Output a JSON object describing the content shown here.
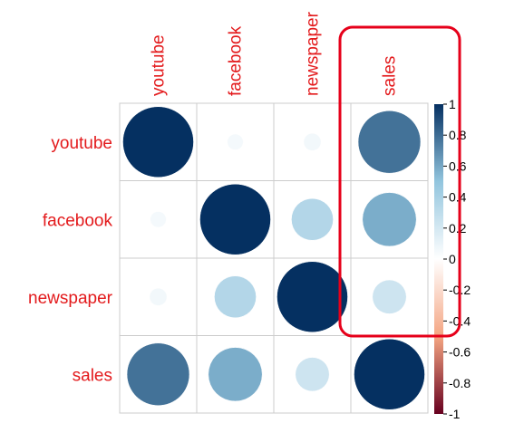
{
  "chart_data": {
    "type": "heatmap",
    "style": "correlation-circles",
    "title": "",
    "row_labels": [
      "youtube",
      "facebook",
      "newspaper",
      "sales"
    ],
    "col_labels": [
      "youtube",
      "facebook",
      "newspaper",
      "sales"
    ],
    "matrix": [
      [
        1.0,
        0.05,
        0.06,
        0.78
      ],
      [
        0.05,
        1.0,
        0.35,
        0.58
      ],
      [
        0.06,
        0.35,
        1.0,
        0.23
      ],
      [
        0.78,
        0.58,
        0.23,
        1.0
      ]
    ],
    "colorbar": {
      "ticks": [
        "1",
        "0.8",
        "0.6",
        "0.4",
        "0.2",
        "0",
        "-0.2",
        "-0.4",
        "-0.6",
        "-0.8",
        "-1"
      ],
      "range": [
        -1,
        1
      ],
      "colors": {
        "neg1": "#67001f",
        "neg05": "#f4a582",
        "zero": "#ffffff",
        "pos05": "#92c5de",
        "pos1": "#053061"
      }
    },
    "label_color": "#e31a1c",
    "highlight": {
      "column": "sales",
      "color": "#e6001a"
    },
    "grid": true
  }
}
